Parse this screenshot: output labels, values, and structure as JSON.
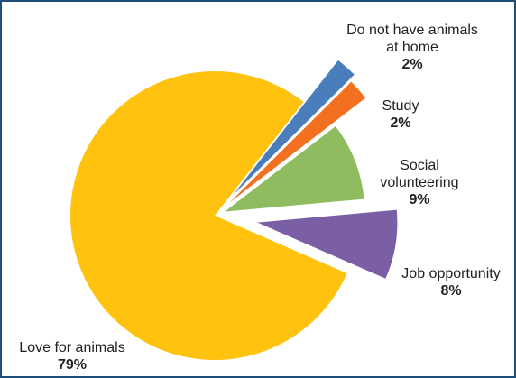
{
  "chart_data": {
    "type": "pie",
    "title": "",
    "exploded": true,
    "slices": [
      {
        "label": "Do not have animals at home",
        "label_lines": [
          "Do not have animals",
          "at home"
        ],
        "value": 2,
        "display": "2%",
        "color": "#4a7ebb"
      },
      {
        "label": "Study",
        "label_lines": [
          "Study"
        ],
        "value": 2,
        "display": "2%",
        "color": "#f37021"
      },
      {
        "label": "Social volunteering",
        "label_lines": [
          "Social",
          "volunteering"
        ],
        "value": 9,
        "display": "9%",
        "color": "#8fbc5f"
      },
      {
        "label": "Job opportunity",
        "label_lines": [
          "Job opportunity"
        ],
        "value": 8,
        "display": "8%",
        "color": "#7b5fa5"
      },
      {
        "label": "Love for animals",
        "label_lines": [
          "Love for animals"
        ],
        "value": 79,
        "display": "79%",
        "color": "#ffc20e"
      }
    ]
  }
}
